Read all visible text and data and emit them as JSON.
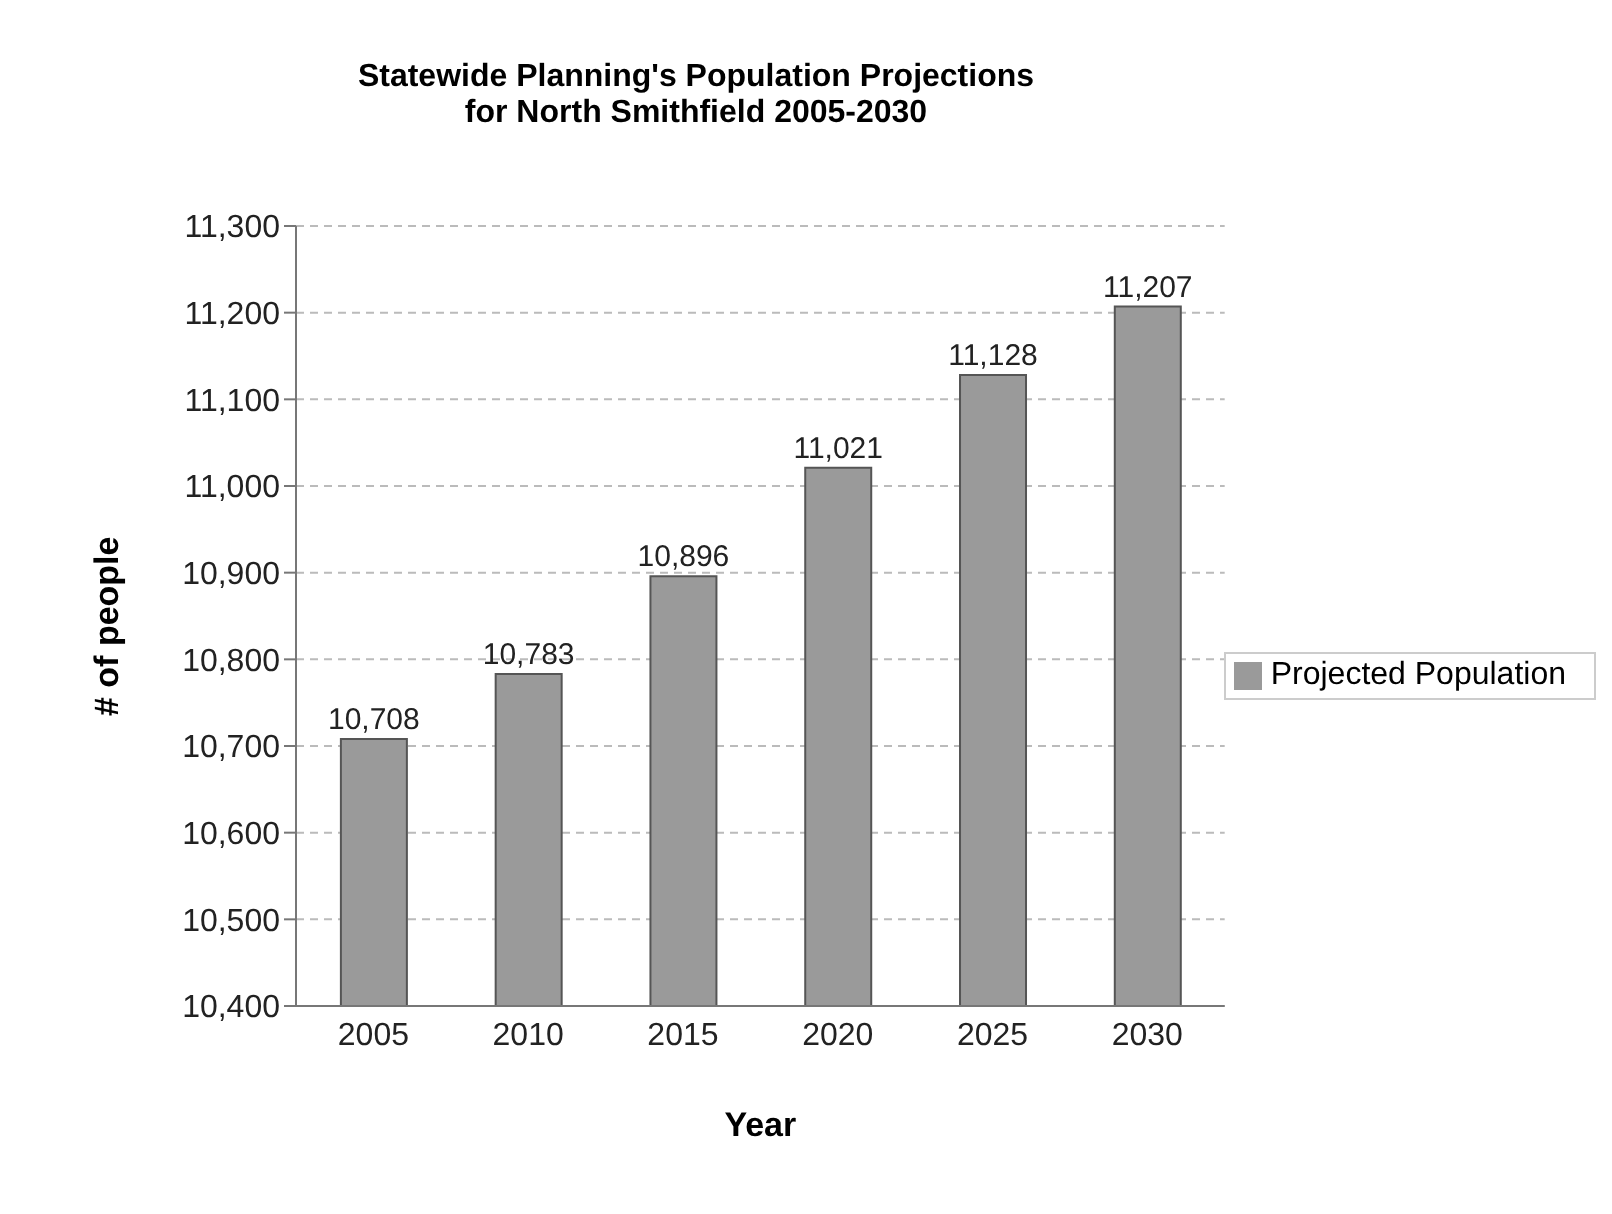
{
  "chart_data": {
    "type": "bar",
    "title": "Statewide Planning's Population Projections\nfor North Smithfield 2005-2030",
    "xlabel": "Year",
    "ylabel": "# of people",
    "categories": [
      "2005",
      "2010",
      "2015",
      "2020",
      "2025",
      "2030"
    ],
    "series": [
      {
        "name": "Projected Population",
        "color": "#9a9a9a",
        "values": [
          10708,
          10783,
          10896,
          11021,
          11128,
          11207
        ],
        "value_labels": [
          "10,708",
          "10,783",
          "10,896",
          "11,021",
          "11,128",
          "11,207"
        ]
      }
    ],
    "ylim": [
      10400,
      11300
    ],
    "yticks": [
      {
        "value": 10400,
        "label": "10,400"
      },
      {
        "value": 10500,
        "label": "10,500"
      },
      {
        "value": 10600,
        "label": "10,600"
      },
      {
        "value": 10700,
        "label": "10,700"
      },
      {
        "value": 10800,
        "label": "10,800"
      },
      {
        "value": 10900,
        "label": "10,900"
      },
      {
        "value": 11000,
        "label": "11,000"
      },
      {
        "value": 11100,
        "label": "11,100"
      },
      {
        "value": 11200,
        "label": "11,200"
      },
      {
        "value": 11300,
        "label": "11,300"
      }
    ],
    "grid": "y",
    "legend": "right"
  }
}
